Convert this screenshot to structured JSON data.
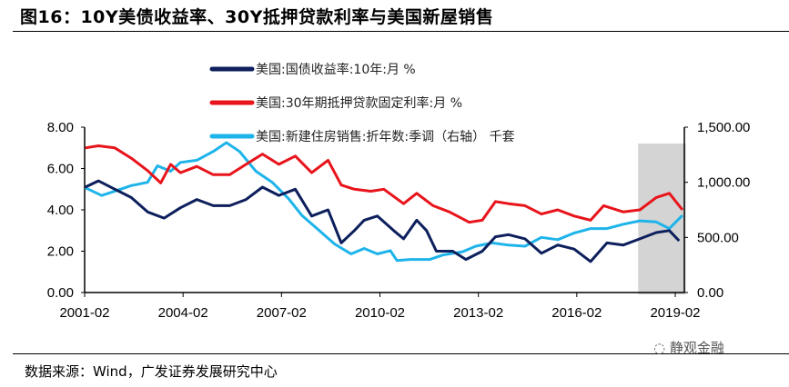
{
  "title": "图16：10Y美债收益率、30Y抵押贷款利率与美国新屋销售",
  "source": "数据来源：Wind，广发证券发展研究中心",
  "watermark": "静观金融",
  "chart_data": {
    "type": "line",
    "title": "图16：10Y美债收益率、30Y抵押贷款利率与美国新屋销售",
    "x_ticks": [
      "2001-02",
      "2004-02",
      "2007-02",
      "2010-02",
      "2013-02",
      "2016-02",
      "2019-02"
    ],
    "x_tick_years": [
      2001.08,
      2004.08,
      2007.08,
      2010.08,
      2013.08,
      2016.08,
      2019.08
    ],
    "xlim": [
      2001.08,
      2019.08
    ],
    "left_ylim": [
      0,
      8
    ],
    "left_ticks": [
      "0.00",
      "2.00",
      "4.00",
      "6.00",
      "8.00"
    ],
    "right_ylim": [
      0,
      1500
    ],
    "right_ticks": [
      "0.00",
      "500.00",
      "1,000.00",
      "1,500.00"
    ],
    "shaded_region": [
      2017.95,
      2019.4
    ],
    "legend_position": "top-center",
    "series": [
      {
        "name": "美国:国债收益率:10年:月 %",
        "color": "#0d1f5c",
        "axis": "left",
        "x": [
          2001.1,
          2001.5,
          2002,
          2002.5,
          2003,
          2003.5,
          2004,
          2004.5,
          2005,
          2005.5,
          2006,
          2006.5,
          2007,
          2007.5,
          2008,
          2008.5,
          2008.9,
          2009.3,
          2009.6,
          2010,
          2010.5,
          2010.8,
          2011.2,
          2011.5,
          2011.8,
          2012.3,
          2012.7,
          2013.2,
          2013.6,
          2014,
          2014.5,
          2015,
          2015.5,
          2016,
          2016.5,
          2017,
          2017.5,
          2018,
          2018.5,
          2018.9,
          2019.2
        ],
        "values": [
          5.1,
          5.4,
          5.0,
          4.6,
          3.9,
          3.6,
          4.1,
          4.5,
          4.2,
          4.2,
          4.5,
          5.1,
          4.7,
          5.0,
          3.7,
          4.0,
          2.4,
          3.0,
          3.5,
          3.7,
          3.0,
          2.6,
          3.5,
          3.0,
          2.0,
          2.0,
          1.6,
          2.0,
          2.7,
          2.8,
          2.6,
          1.9,
          2.3,
          2.1,
          1.5,
          2.4,
          2.3,
          2.6,
          2.9,
          3.0,
          2.5
        ]
      },
      {
        "name": "美国:30年期抵押贷款固定利率:月 %",
        "color": "#e8141b",
        "axis": "left",
        "x": [
          2001.1,
          2001.5,
          2002,
          2002.5,
          2003,
          2003.4,
          2003.7,
          2004,
          2004.5,
          2005,
          2005.5,
          2006,
          2006.5,
          2007,
          2007.5,
          2008,
          2008.5,
          2008.9,
          2009.3,
          2009.8,
          2010.2,
          2010.8,
          2011.2,
          2011.7,
          2012.2,
          2012.8,
          2013.2,
          2013.6,
          2014,
          2014.5,
          2015,
          2015.5,
          2016,
          2016.5,
          2016.9,
          2017.5,
          2018,
          2018.5,
          2018.9,
          2019.3
        ],
        "values": [
          7.0,
          7.1,
          7.0,
          6.5,
          5.9,
          5.3,
          6.2,
          5.8,
          6.1,
          5.7,
          5.7,
          6.2,
          6.7,
          6.2,
          6.6,
          5.8,
          6.4,
          5.2,
          5.0,
          4.9,
          5.0,
          4.3,
          4.8,
          4.2,
          3.9,
          3.4,
          3.5,
          4.4,
          4.3,
          4.2,
          3.8,
          4.0,
          3.7,
          3.5,
          4.2,
          3.9,
          4.0,
          4.6,
          4.8,
          4.0
        ]
      },
      {
        "name": "美国:新建住房销售:折年数:季调（右轴） 千套",
        "color": "#1eb4ea",
        "axis": "right",
        "x": [
          2001.1,
          2001.6,
          2002,
          2002.5,
          2003,
          2003.3,
          2003.7,
          2004,
          2004.5,
          2005,
          2005.4,
          2005.8,
          2006.3,
          2006.8,
          2007.3,
          2007.7,
          2008.2,
          2008.7,
          2009.2,
          2009.6,
          2010,
          2010.4,
          2010.6,
          2011,
          2011.6,
          2012,
          2012.6,
          2013,
          2013.5,
          2014,
          2014.5,
          2015,
          2015.5,
          2016,
          2016.5,
          2017,
          2017.5,
          2018,
          2018.5,
          2018.9,
          2019.3
        ],
        "values": [
          950,
          880,
          920,
          970,
          1000,
          1150,
          1100,
          1180,
          1200,
          1280,
          1360,
          1280,
          1100,
          1000,
          850,
          700,
          570,
          440,
          350,
          400,
          350,
          380,
          290,
          300,
          300,
          340,
          370,
          420,
          450,
          430,
          420,
          500,
          480,
          540,
          580,
          580,
          620,
          650,
          640,
          580,
          700
        ]
      }
    ]
  }
}
